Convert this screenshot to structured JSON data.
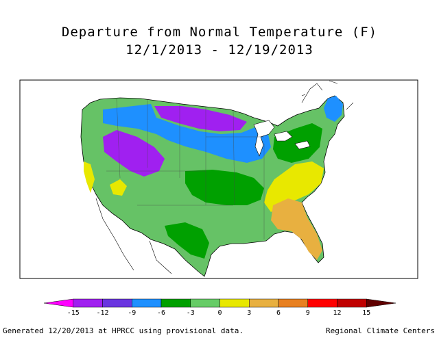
{
  "title": "Departure from Normal Temperature (F)",
  "subtitle": "12/1/2013 - 12/19/2013",
  "legend": {
    "ticks": [
      "-15",
      "-12",
      "-9",
      "-6",
      "-3",
      "0",
      "3",
      "6",
      "9",
      "12",
      "15"
    ],
    "colors": [
      "#ff00ff",
      "#a020f0",
      "#6a35e0",
      "#1e90ff",
      "#00a000",
      "#66cc66",
      "#e8e800",
      "#e8b040",
      "#e88020",
      "#ff0000",
      "#c00000",
      "#600000"
    ]
  },
  "map_colors": {
    "background": "#ffffff",
    "land_base": "#66c266",
    "outline": "#000000"
  },
  "footer": {
    "left": "Generated 12/20/2013 at HPRCC using provisional data.",
    "right": "Regional Climate Centers"
  }
}
